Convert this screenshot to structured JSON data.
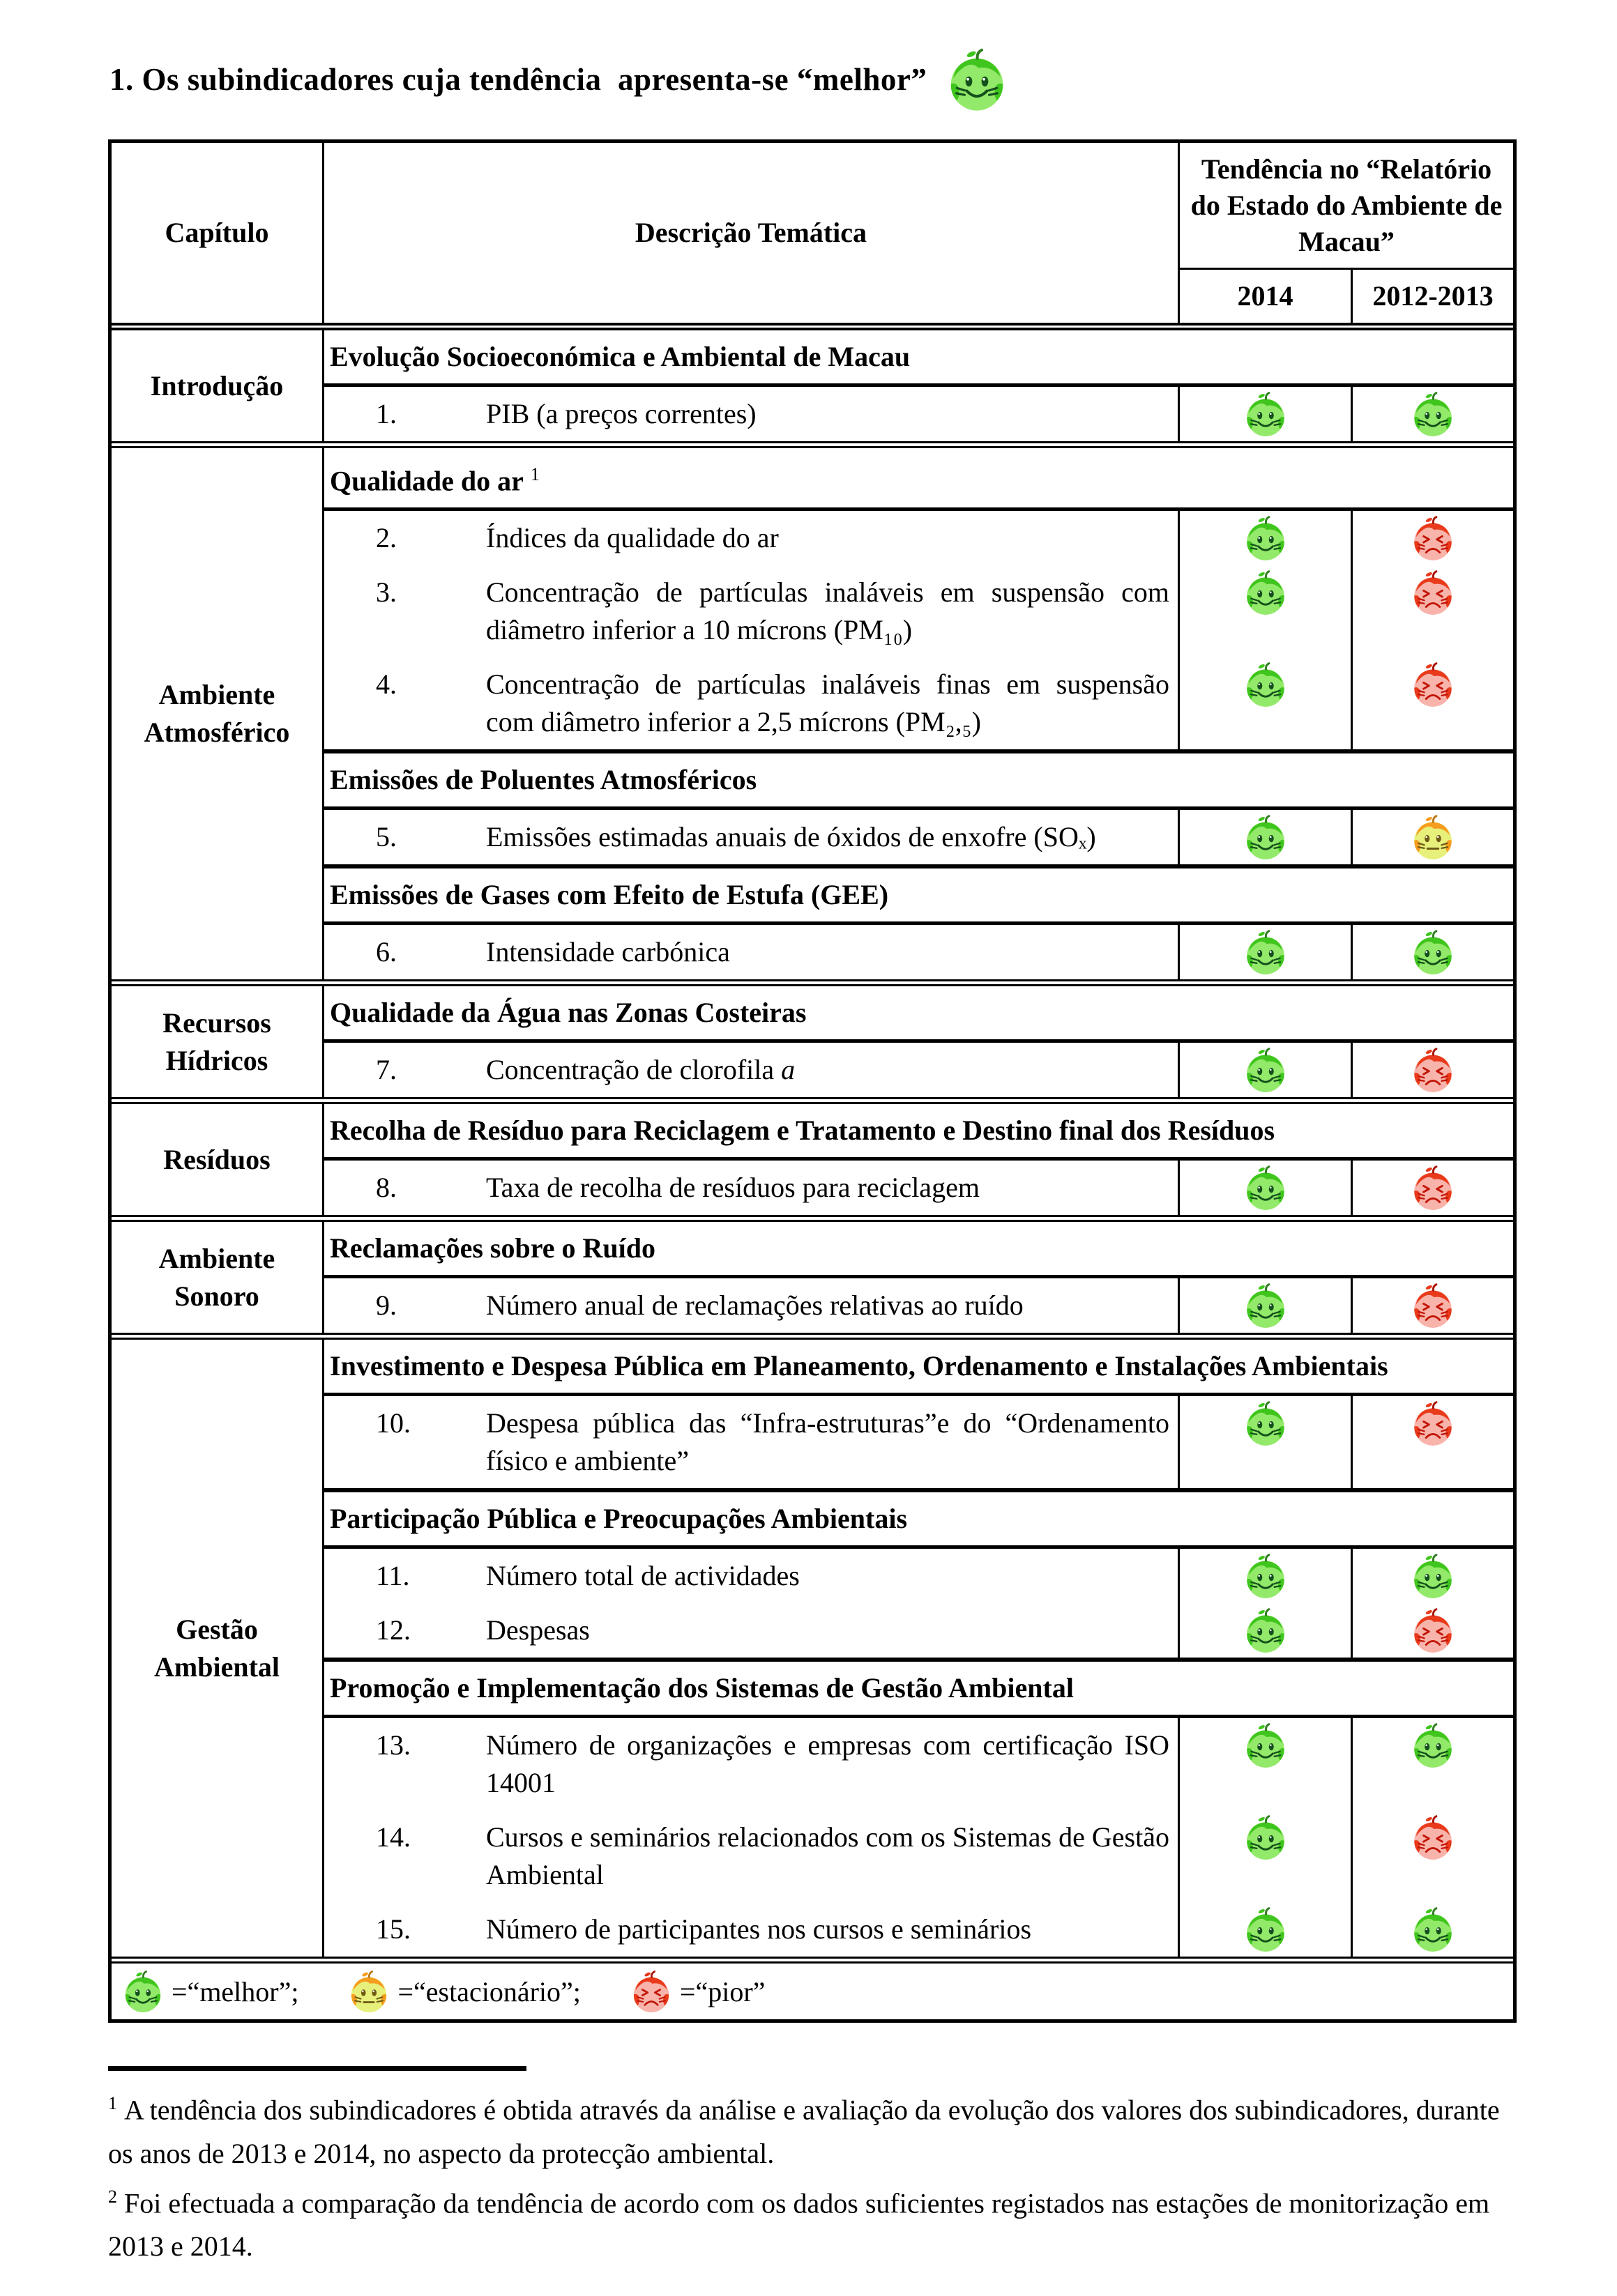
{
  "title": "1. Os subindicadores cuja tendência  apresenta-se “melhor”",
  "table": {
    "header": {
      "col_chapter": "Capítulo",
      "col_description": "Descrição Temática",
      "trend_title": "Tendência no “Relatório do Estado do Ambiente de Macau”",
      "year_1": "2014",
      "year_2": "2012-2013"
    },
    "chapters": [
      {
        "name": "Introdução",
        "sections": [
          {
            "header": "Evolução Socioeconómica e Ambiental de Macau",
            "items": [
              {
                "num": "1.",
                "text": "PIB (a preços correntes)",
                "trend_2014": "melhor",
                "trend_2012_2013": "melhor"
              }
            ]
          }
        ]
      },
      {
        "name": "Ambiente Atmosférico",
        "sections": [
          {
            "header": "Qualidade do ar",
            "header_sup": "1",
            "items": [
              {
                "num": "2.",
                "text": "Índices da qualidade do ar",
                "trend_2014": "melhor",
                "trend_2012_2013": "pior"
              },
              {
                "num": "3.",
                "text": "Concentração de partículas inaláveis em suspensão com diâmetro inferior a 10 mícrons (PM₁₀)",
                "trend_2014": "melhor",
                "trend_2012_2013": "pior"
              },
              {
                "num": "4.",
                "text": "Concentração de partículas inaláveis finas em suspensão com diâmetro inferior a 2,5 mícrons (PM₂,₅)",
                "trend_2014": "melhor",
                "trend_2012_2013": "pior"
              }
            ]
          },
          {
            "header": "Emissões de Poluentes Atmosféricos",
            "items": [
              {
                "num": "5.",
                "text": "Emissões estimadas anuais de óxidos de enxofre (SOₓ)",
                "trend_2014": "melhor",
                "trend_2012_2013": "estacionario"
              }
            ]
          },
          {
            "header": "Emissões de Gases com Efeito de Estufa (GEE)",
            "items": [
              {
                "num": "6.",
                "text": "Intensidade carbónica",
                "trend_2014": "melhor",
                "trend_2012_2013": "melhor"
              }
            ]
          }
        ]
      },
      {
        "name": "Recursos Hídricos",
        "sections": [
          {
            "header": "Qualidade da Água nas Zonas Costeiras",
            "items": [
              {
                "num": "7.",
                "text": "Concentração de clorofila ",
                "text_italic": "a",
                "trend_2014": "melhor",
                "trend_2012_2013": "pior"
              }
            ]
          }
        ]
      },
      {
        "name": "Resíduos",
        "sections": [
          {
            "header": "Recolha de Resíduo para Reciclagem e Tratamento e Destino final dos Resíduos",
            "items": [
              {
                "num": "8.",
                "text": "Taxa de recolha de resíduos para reciclagem",
                "trend_2014": "melhor",
                "trend_2012_2013": "pior"
              }
            ]
          }
        ]
      },
      {
        "name": "Ambiente Sonoro",
        "sections": [
          {
            "header": "Reclamações sobre o Ruído",
            "items": [
              {
                "num": "9.",
                "text": "Número anual de reclamações relativas ao ruído",
                "trend_2014": "melhor",
                "trend_2012_2013": "pior"
              }
            ]
          }
        ]
      },
      {
        "name": "Gestão Ambiental",
        "sections": [
          {
            "header": "Investimento e Despesa Pública em Planeamento, Ordenamento e Instalações Ambientais",
            "items": [
              {
                "num": "10.",
                "text": "Despesa pública das “Infra-estruturas”e do “Ordenamento físico e ambiente”",
                "trend_2014": "melhor",
                "trend_2012_2013": "pior"
              }
            ]
          },
          {
            "header": "Participação Pública e Preocupações Ambientais",
            "item_gap": "large",
            "items": [
              {
                "num": "11.",
                "text": "Número total de actividades",
                "trend_2014": "melhor",
                "trend_2012_2013": "melhor"
              },
              {
                "num": "12.",
                "text": "Despesas",
                "trend_2014": "melhor",
                "trend_2012_2013": "pior"
              }
            ]
          },
          {
            "header": "Promoção e Implementação dos Sistemas de Gestão Ambiental",
            "items": [
              {
                "num": "13.",
                "text": "Número de organizações e empresas com certificação ISO 14001",
                "trend_2014": "melhor",
                "trend_2012_2013": "melhor"
              },
              {
                "num": "14.",
                "text": "Cursos e seminários relacionados com os Sistemas de Gestão Ambiental",
                "trend_2014": "melhor",
                "trend_2012_2013": "pior"
              },
              {
                "num": "15.",
                "text": "Número de participantes nos cursos e seminários",
                "trend_2014": "melhor",
                "trend_2012_2013": "melhor"
              }
            ]
          }
        ]
      }
    ],
    "legend": [
      {
        "icon": "melhor",
        "label": "=“melhor”;"
      },
      {
        "icon": "estacionario",
        "label": "=“estacionário”;"
      },
      {
        "icon": "pior",
        "label": "=“pior”"
      }
    ]
  },
  "footnotes": [
    {
      "sup": "1",
      "text": "A tendência dos subindicadores é obtida através da análise e avaliação da evolução dos valores dos subindicadores, durante os anos de 2013 e 2014, no aspecto da protecção ambiental."
    },
    {
      "sup": "2",
      "text": "Foi efectuada a comparação da tendência de acordo com os dados suficientes registados nas estações de monitorização em 2013 e 2014."
    }
  ],
  "colors": {
    "border": "#000000",
    "apples": {
      "melhor": {
        "body": "#93E969",
        "patch": "#3FC51D",
        "face": "#14501C",
        "stem": "#2E7D1E"
      },
      "estacionario": {
        "body": "#E7F07B",
        "patch": "#F59D1E",
        "face": "#6E5A14",
        "stem": "#B97714"
      },
      "pior": {
        "body": "#F8B4AB",
        "patch": "#E93A1B",
        "face": "#C21507",
        "stem": "#A81205"
      }
    }
  }
}
